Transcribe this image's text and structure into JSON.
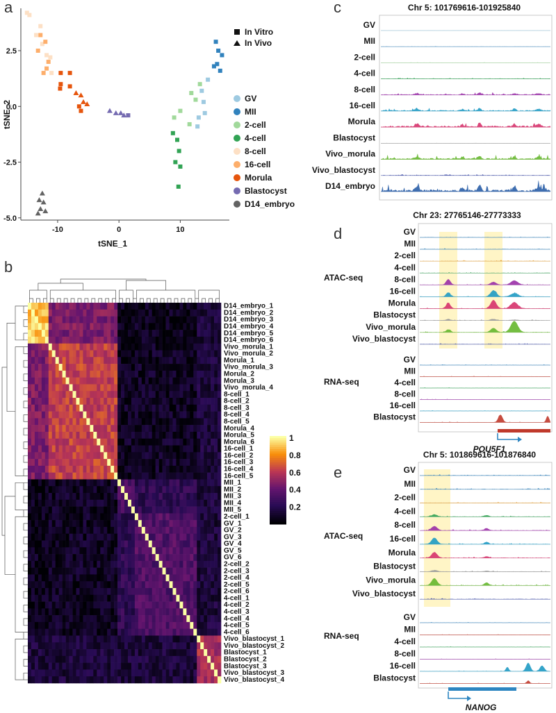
{
  "panels": {
    "a": {
      "letter": "a",
      "xlabel": "tSNE_1",
      "ylabel": "tSNE_2",
      "xticks": [
        -10,
        0,
        10
      ],
      "yticks": [
        2.5,
        0.0,
        -2.5,
        -5.0
      ],
      "ytick_labels": [
        "2.5",
        "0.0",
        "-2.5",
        "-5.0"
      ],
      "xlim": [
        -16,
        18
      ],
      "ylim": [
        -5.1,
        4.4
      ],
      "shape_legend": [
        {
          "label": "In Vitro",
          "shape": "square"
        },
        {
          "label": "In Vivo",
          "shape": "triangle"
        }
      ],
      "color_legend": [
        {
          "label": "GV",
          "color": "#9ecae1"
        },
        {
          "label": "MII",
          "color": "#3182bd"
        },
        {
          "label": "2-cell",
          "color": "#a1d99b"
        },
        {
          "label": "4-cell",
          "color": "#31a354"
        },
        {
          "label": "8-cell",
          "color": "#fde0c5"
        },
        {
          "label": "16-cell",
          "color": "#fdae6b"
        },
        {
          "label": "Morula",
          "color": "#e6550d"
        },
        {
          "label": "Blastocyst",
          "color": "#756bb1"
        },
        {
          "label": "D14_embryo",
          "color": "#636363"
        }
      ]
    },
    "b": {
      "letter": "b",
      "row_labels": [
        "D14_embryo_1",
        "D14_embryo_2",
        "D14_embryo_3",
        "D14_embryo_4",
        "D14_embryo_5",
        "D14_embryo_6",
        "Vivo_morula_1",
        "Vivo_morula_2",
        "Morula_1",
        "Vivo_morula_3",
        "Morula_2",
        "Morula_3",
        "Vivo_morula_4",
        "8-cell_1",
        "8-cell_2",
        "8-cell_3",
        "8-cell_4",
        "8-cell_5",
        "Morula_4",
        "Morula_5",
        "Morula_6",
        "16-cell_1",
        "16-cell_2",
        "16-cell_3",
        "16-cell_4",
        "16-cell_5",
        "MII_1",
        "MII_2",
        "MII_3",
        "MII_4",
        "MII_5",
        "2-cell_1",
        "GV_1",
        "GV_2",
        "GV_3",
        "GV_4",
        "GV_5",
        "GV_6",
        "2-cell_2",
        "2-cell_3",
        "2-cell_4",
        "2-cell_5",
        "2-cell_6",
        "4-cell_1",
        "4-cell_2",
        "4-cell_3",
        "4-cell_4",
        "4-cell_5",
        "4-cell_6",
        "Vivo_blastocyst_1",
        "Vivo_blastocyst_2",
        "Blastocyst_1",
        "Blastocyst_2",
        "Blastocyst_3",
        "Vivo_blastocyst_3",
        "Vivo_blastocyst_4"
      ],
      "colorbar_ticks": [
        "1",
        "0.8",
        "0.6",
        "0.4",
        "0.2"
      ]
    },
    "c": {
      "letter": "c",
      "title": "Chr 5: 101769616-101925840",
      "tracks": [
        {
          "label": "GV",
          "color": "#9ecae1",
          "amp": 0.3
        },
        {
          "label": "MII",
          "color": "#3182bd",
          "amp": 0.3
        },
        {
          "label": "2-cell",
          "color": "#a1d99b",
          "amp": 0.5
        },
        {
          "label": "4-cell",
          "color": "#31a354",
          "amp": 1.2
        },
        {
          "label": "8-cell",
          "color": "#9b2fa8",
          "amp": 3
        },
        {
          "label": "16-cell",
          "color": "#1f9bc4",
          "amp": 4
        },
        {
          "label": "Morula",
          "color": "#d6336c",
          "amp": 6
        },
        {
          "label": "Blastocyst",
          "color": "#999999",
          "amp": 0.4
        },
        {
          "label": "Vivo_morula",
          "color": "#66b82e",
          "amp": 5
        },
        {
          "label": "Vivo_blastocyst",
          "color": "#3b4aa8",
          "amp": 1.5
        },
        {
          "label": "D14_embryo",
          "color": "#2b5fa8",
          "amp": 9
        }
      ]
    },
    "d": {
      "letter": "d",
      "title": "Chr 23: 27765146-27773333",
      "atac_label": "ATAC-seq",
      "rna_label": "RNA-seq",
      "atac_tracks": [
        {
          "label": "GV",
          "color": "#3182bd"
        },
        {
          "label": "MII",
          "color": "#3182bd"
        },
        {
          "label": "2-cell",
          "color": "#e6a23c"
        },
        {
          "label": "4-cell",
          "color": "#31a354"
        },
        {
          "label": "8-cell",
          "color": "#9b2fa8"
        },
        {
          "label": "16-cell",
          "color": "#1f9bc4"
        },
        {
          "label": "Morula",
          "color": "#d6336c"
        },
        {
          "label": "Blastocyst",
          "color": "#999999"
        },
        {
          "label": "Vivo_morula",
          "color": "#66b82e"
        },
        {
          "label": "Vivo_blastocyst",
          "color": "#3b4aa8"
        }
      ],
      "rna_tracks": [
        {
          "label": "GV",
          "color": "#3182bd"
        },
        {
          "label": "MII",
          "color": "#c0392b"
        },
        {
          "label": "4-cell",
          "color": "#31a354"
        },
        {
          "label": "8-cell",
          "color": "#9b2fa8"
        },
        {
          "label": "16-cell",
          "color": "#1f9bc4"
        },
        {
          "label": "Blastocyst",
          "color": "#c0392b"
        }
      ],
      "gene": "POU5F1"
    },
    "e": {
      "letter": "e",
      "title": "Chr 5: 101869616-101876840",
      "atac_label": "ATAC-seq",
      "rna_label": "RNA-seq",
      "atac_tracks": [
        {
          "label": "GV",
          "color": "#3182bd"
        },
        {
          "label": "MII",
          "color": "#3182bd"
        },
        {
          "label": "2-cell",
          "color": "#e6a23c"
        },
        {
          "label": "4-cell",
          "color": "#31a354"
        },
        {
          "label": "8-cell",
          "color": "#9b2fa8"
        },
        {
          "label": "16-cell",
          "color": "#1f9bc4"
        },
        {
          "label": "Morula",
          "color": "#d6336c"
        },
        {
          "label": "Blastocyst",
          "color": "#999999"
        },
        {
          "label": "Vivo_morula",
          "color": "#66b82e"
        },
        {
          "label": "Vivo_blastocyst",
          "color": "#3b4aa8"
        }
      ],
      "rna_tracks": [
        {
          "label": "GV",
          "color": "#3182bd"
        },
        {
          "label": "MII",
          "color": "#c0392b"
        },
        {
          "label": "4-cell",
          "color": "#31a354"
        },
        {
          "label": "8-cell",
          "color": "#9b2fa8"
        },
        {
          "label": "16-cell",
          "color": "#1f9bc4"
        },
        {
          "label": "Blastocyst",
          "color": "#c0392b"
        }
      ],
      "gene": "NANOG"
    }
  },
  "chart_data": [
    {
      "type": "scatter",
      "xlabel": "tSNE_1",
      "ylabel": "tSNE_2",
      "xlim": [
        -16,
        18
      ],
      "ylim": [
        -5.1,
        4.4
      ],
      "grid": false,
      "legend": "right",
      "series": [
        {
          "name": "8-cell",
          "shape": "square",
          "color": "#fde0c5",
          "points": [
            [
              -15.0,
              4.2
            ],
            [
              -14.6,
              4.1
            ],
            [
              -13.5,
              3.2
            ],
            [
              -12.8,
              3.6
            ],
            [
              -12.5,
              2.8
            ],
            [
              -11.8,
              2.3
            ],
            [
              -11.2,
              2.2
            ],
            [
              -11.0,
              1.5
            ]
          ]
        },
        {
          "name": "16-cell",
          "shape": "square",
          "color": "#fdae6b",
          "points": [
            [
              -12.8,
              3.2
            ],
            [
              -13.2,
              2.5
            ],
            [
              -12.0,
              2.9
            ],
            [
              -11.5,
              2.0
            ],
            [
              -11.8,
              1.7
            ],
            [
              -12.3,
              1.5
            ]
          ]
        },
        {
          "name": "Morula",
          "shape": "square",
          "color": "#e6550d",
          "points": [
            [
              -9.5,
              1.5
            ],
            [
              -8.0,
              1.5
            ],
            [
              -9.5,
              1.0
            ],
            [
              -9.6,
              0.8
            ],
            [
              -8.0,
              0.9
            ],
            [
              -6.5,
              0.0
            ],
            [
              -6.2,
              -0.2
            ]
          ]
        },
        {
          "name": "Vivo_morula",
          "shape": "triangle",
          "color": "#e6550d",
          "points": [
            [
              -7.0,
              0.6
            ],
            [
              -6.2,
              0.5
            ],
            [
              -5.8,
              0.2
            ],
            [
              -5.2,
              0.1
            ]
          ]
        },
        {
          "name": "Blastocyst",
          "shape": "square",
          "color": "#756bb1",
          "points": [
            [
              1.5,
              -0.4
            ]
          ]
        },
        {
          "name": "Vivo_blastocyst",
          "shape": "triangle",
          "color": "#756bb1",
          "points": [
            [
              -1.5,
              -0.2
            ],
            [
              -0.5,
              -0.3
            ],
            [
              0.3,
              -0.3
            ],
            [
              0.8,
              -0.4
            ]
          ]
        },
        {
          "name": "GV",
          "shape": "square",
          "color": "#9ecae1",
          "points": [
            [
              13.5,
              0.7
            ],
            [
              13.8,
              0.2
            ],
            [
              14.0,
              -0.3
            ],
            [
              14.5,
              1.2
            ],
            [
              13.0,
              -0.5
            ],
            [
              12.8,
              -0.9
            ]
          ]
        },
        {
          "name": "MII",
          "shape": "square",
          "color": "#3182bd",
          "points": [
            [
              15.8,
              2.9
            ],
            [
              16.2,
              2.5
            ],
            [
              16.8,
              2.3
            ],
            [
              15.5,
              1.8
            ],
            [
              16.0,
              1.9
            ],
            [
              16.5,
              1.6
            ]
          ]
        },
        {
          "name": "2-cell",
          "shape": "square",
          "color": "#a1d99b",
          "points": [
            [
              10.0,
              -0.2
            ],
            [
              11.8,
              0.6
            ],
            [
              11.5,
              -0.8
            ],
            [
              13.2,
              1.0
            ],
            [
              12.5,
              0.3
            ],
            [
              9.0,
              -0.5
            ]
          ]
        },
        {
          "name": "4-cell",
          "shape": "square",
          "color": "#31a354",
          "points": [
            [
              8.8,
              -1.2
            ],
            [
              9.5,
              -1.5
            ],
            [
              9.8,
              -2.0
            ],
            [
              9.2,
              -2.5
            ],
            [
              10.0,
              -2.7
            ],
            [
              9.7,
              -3.6
            ]
          ]
        },
        {
          "name": "D14_embryo",
          "shape": "triangle",
          "color": "#636363",
          "points": [
            [
              -12.5,
              -3.9
            ],
            [
              -13.0,
              -4.2
            ],
            [
              -12.3,
              -4.3
            ],
            [
              -12.8,
              -4.6
            ],
            [
              -13.2,
              -4.8
            ],
            [
              -12.0,
              -4.7
            ]
          ]
        }
      ]
    }
  ]
}
